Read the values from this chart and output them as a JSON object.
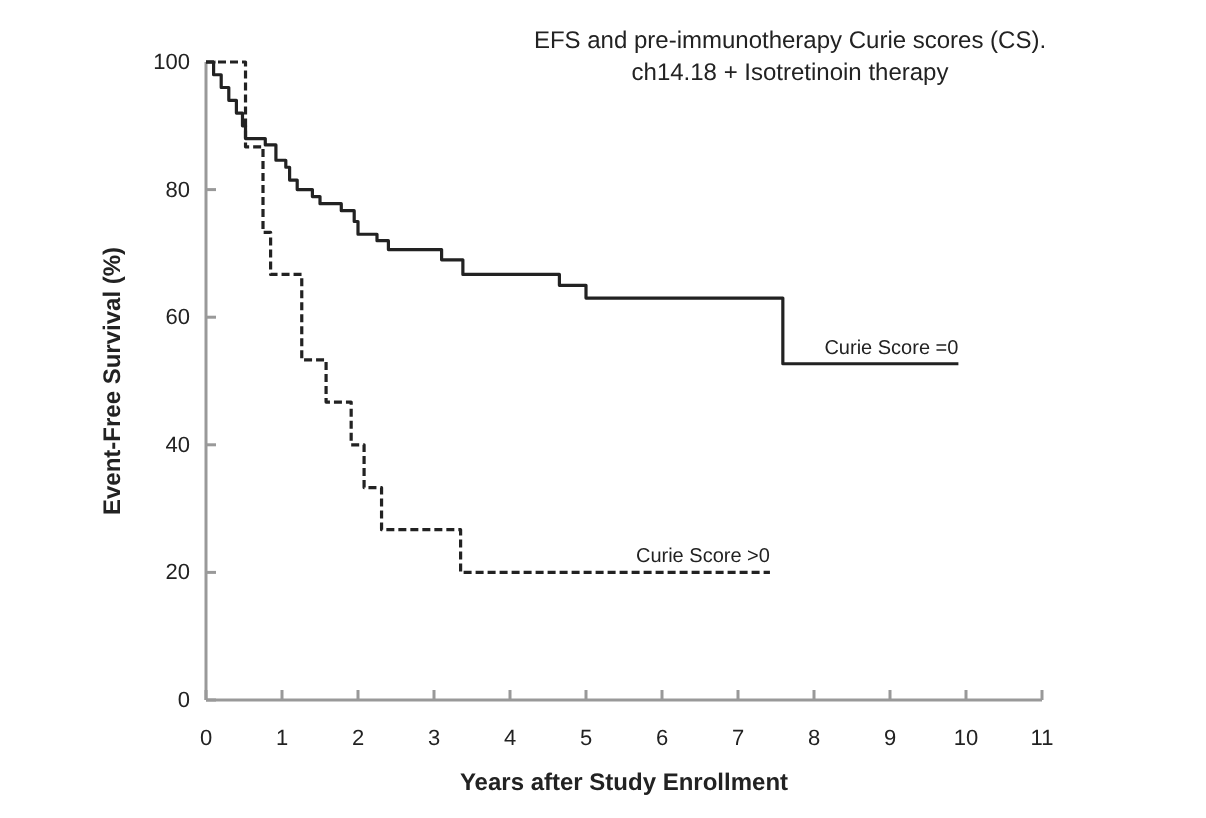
{
  "chart_data": {
    "type": "step",
    "title": "EFS and pre-immunotherapy Curie scores (CS).",
    "subtitle": "ch14.18 + Isotretinoin therapy",
    "xlabel": "Years after Study Enrollment",
    "ylabel": "Event-Free Survival (%)",
    "xlim": [
      0,
      11
    ],
    "ylim": [
      0,
      100
    ],
    "xticks": [
      0,
      1,
      2,
      3,
      4,
      5,
      6,
      7,
      8,
      9,
      10,
      11
    ],
    "yticks": [
      0,
      20,
      40,
      60,
      80,
      100
    ],
    "grid": false,
    "marker": "none",
    "series": [
      {
        "name": "Curie Score =0",
        "color": "#222222",
        "line_style": "solid",
        "x": [
          0,
          0.1,
          0.2,
          0.3,
          0.4,
          0.48,
          0.52,
          0.78,
          0.92,
          1.05,
          1.1,
          1.2,
          1.4,
          1.5,
          1.78,
          1.95,
          2.0,
          2.25,
          2.4,
          3.1,
          3.38,
          4.65,
          5.0,
          7.59,
          9.9
        ],
        "values": [
          100,
          98,
          96,
          94,
          92,
          90,
          88,
          87,
          84.6,
          83.5,
          81.5,
          80,
          78.9,
          77.8,
          76.7,
          75,
          73,
          72,
          70.6,
          69,
          66.7,
          65,
          63,
          52.7,
          52.7
        ]
      },
      {
        "name": "Curie Score >0",
        "color": "#222222",
        "line_style": "dashed",
        "x": [
          0,
          0.52,
          0.75,
          0.85,
          1.26,
          1.58,
          1.91,
          2.08,
          2.31,
          3.35,
          7.42
        ],
        "values": [
          100,
          86.7,
          73.3,
          66.7,
          53.3,
          46.7,
          40,
          33.3,
          26.7,
          20,
          20
        ]
      }
    ]
  }
}
